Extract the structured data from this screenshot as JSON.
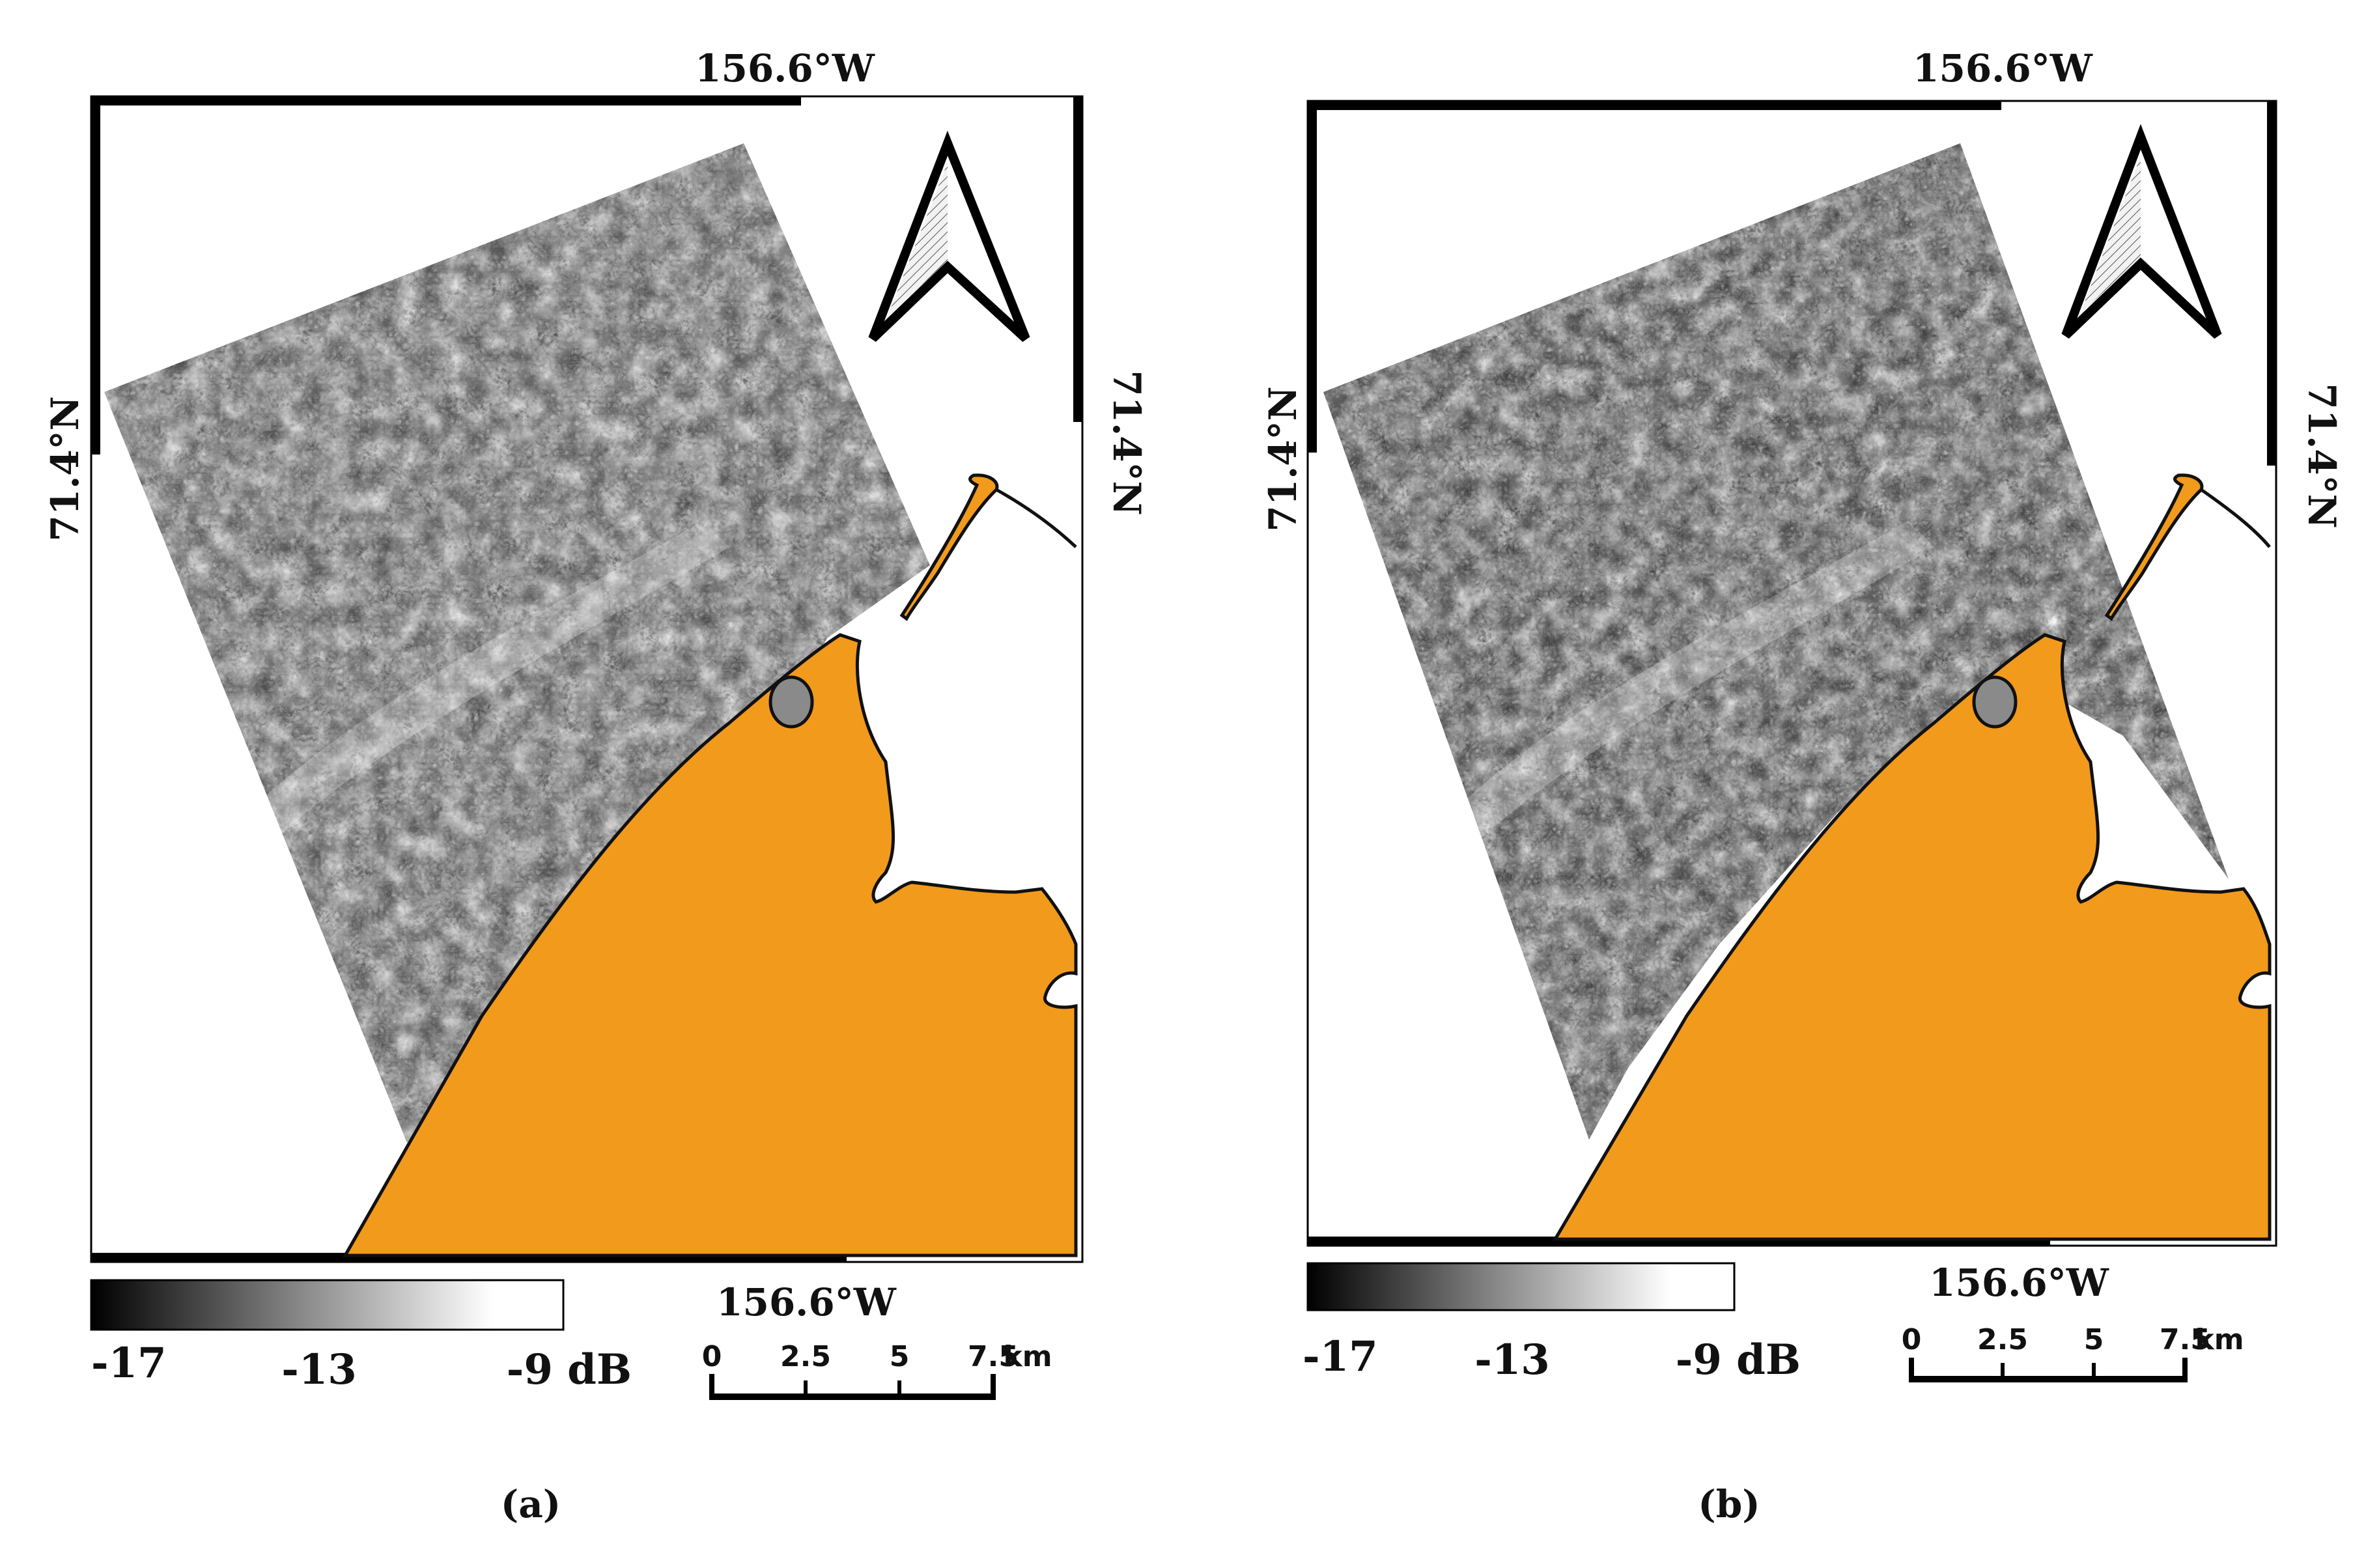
{
  "colors": {
    "land": "#F29A1C",
    "ice_dark": "#3a3a3a",
    "ice_light": "#d8d8d8",
    "frame": "#000000",
    "background": "#ffffff"
  },
  "panels": [
    {
      "id": "a",
      "caption": "(a)",
      "lon_top": "156.6°W",
      "lon_bottom": "156.6°W",
      "lat_left": "71.4°N",
      "lat_right": "71.4°N",
      "colorbar": {
        "min_label": "-17",
        "mid_label": "-13",
        "max_label": "-9 dB",
        "min_db": -17,
        "max_db": -9
      },
      "scalebar": {
        "ticks": [
          "0",
          "2.5",
          "5",
          "7.5"
        ],
        "unit": "km"
      },
      "north_arrow_icon": "north-arrow-icon"
    },
    {
      "id": "b",
      "caption": "(b)",
      "lon_top": "156.6°W",
      "lon_bottom": "156.6°W",
      "lat_left": "71.4°N",
      "lat_right": "71.4°N",
      "colorbar": {
        "min_label": "-17",
        "mid_label": "-13",
        "max_label": "-9 dB",
        "min_db": -17,
        "max_db": -9
      },
      "scalebar": {
        "ticks": [
          "0",
          "2.5",
          "5",
          "7.5"
        ],
        "unit": "km"
      },
      "north_arrow_icon": "north-arrow-icon"
    }
  ]
}
